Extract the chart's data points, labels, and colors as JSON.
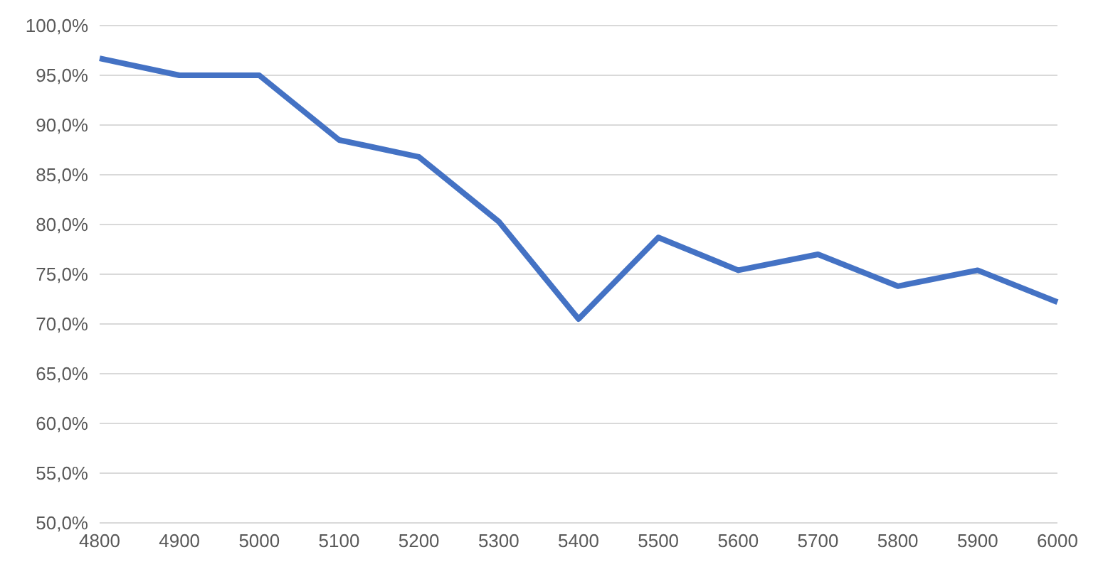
{
  "chart_data": {
    "type": "line",
    "categories": [
      "4800",
      "4900",
      "5000",
      "5100",
      "5200",
      "5300",
      "5400",
      "5500",
      "5600",
      "5700",
      "5800",
      "5900",
      "6000"
    ],
    "series": [
      {
        "color": "#4472c4",
        "values": [
          96.7,
          95.0,
          95.0,
          88.5,
          86.8,
          80.3,
          70.5,
          78.7,
          75.4,
          77.0,
          73.8,
          75.4,
          72.2
        ]
      }
    ],
    "ylim": [
      50,
      100
    ],
    "yticks": [
      {
        "value": 50,
        "label": "50,0%"
      },
      {
        "value": 55,
        "label": "55,0%"
      },
      {
        "value": 60,
        "label": "60,0%"
      },
      {
        "value": 65,
        "label": "65,0%"
      },
      {
        "value": 70,
        "label": "70,0%"
      },
      {
        "value": 75,
        "label": "75,0%"
      },
      {
        "value": 80,
        "label": "80,0%"
      },
      {
        "value": 85,
        "label": "85,0%"
      },
      {
        "value": 90,
        "label": "90,0%"
      },
      {
        "value": 95,
        "label": "95,0%"
      },
      {
        "value": 100,
        "label": "100,0%"
      }
    ],
    "grid": "y",
    "legend": false,
    "marker": "none",
    "line_style": "solid"
  }
}
